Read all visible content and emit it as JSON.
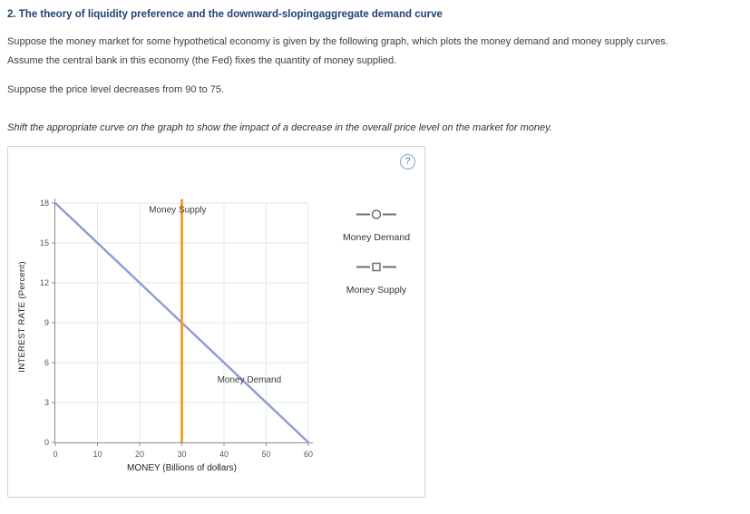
{
  "page": {
    "title": "2. The theory of liquidity preference and the downward-slopingaggregate demand curve",
    "paragraph1_line1": "Suppose the money market for some hypothetical economy is given by the following graph, which plots the money demand and money supply curves.",
    "paragraph1_line2": "Assume the central bank in this economy (the Fed) fixes the quantity of money supplied.",
    "paragraph2": "Suppose the price level decreases from 90 to 75.",
    "instruction": "Shift the appropriate curve on the graph to show the impact of a decrease in the overall price level on the market for money."
  },
  "panel": {
    "help_icon": "?"
  },
  "colors": {
    "title_navy": "#1d4271",
    "money_demand": "#8e9ed2",
    "money_supply": "#efa32a",
    "grid": "#e5e6e8",
    "axis": "#8a8a8a"
  },
  "chart_data": {
    "type": "line",
    "title": "",
    "xlabel": "MONEY (Billions of dollars)",
    "ylabel": "INTEREST RATE (Percent)",
    "xlim": [
      0,
      60
    ],
    "ylim": [
      0,
      18
    ],
    "xticks": [
      0,
      10,
      20,
      30,
      40,
      50,
      60
    ],
    "yticks": [
      0,
      3,
      6,
      9,
      12,
      15,
      18
    ],
    "grid": true,
    "legend_position": "right",
    "series": [
      {
        "name": "Money Demand",
        "color": "#8e9ed2",
        "width": 2.5,
        "points": [
          [
            0,
            18
          ],
          [
            60,
            0
          ]
        ],
        "label_pos": [
          46,
          4.5
        ]
      },
      {
        "name": "Money Supply",
        "color": "#efa32a",
        "width": 3,
        "points": [
          [
            30,
            0
          ],
          [
            30,
            18.3
          ]
        ],
        "label_pos": [
          29,
          17.3
        ]
      }
    ],
    "intersection": {
      "money": 30,
      "interest_rate": 9
    },
    "legend": [
      {
        "label": "Money Demand",
        "marker": "circle"
      },
      {
        "label": "Money Supply",
        "marker": "square"
      }
    ]
  }
}
